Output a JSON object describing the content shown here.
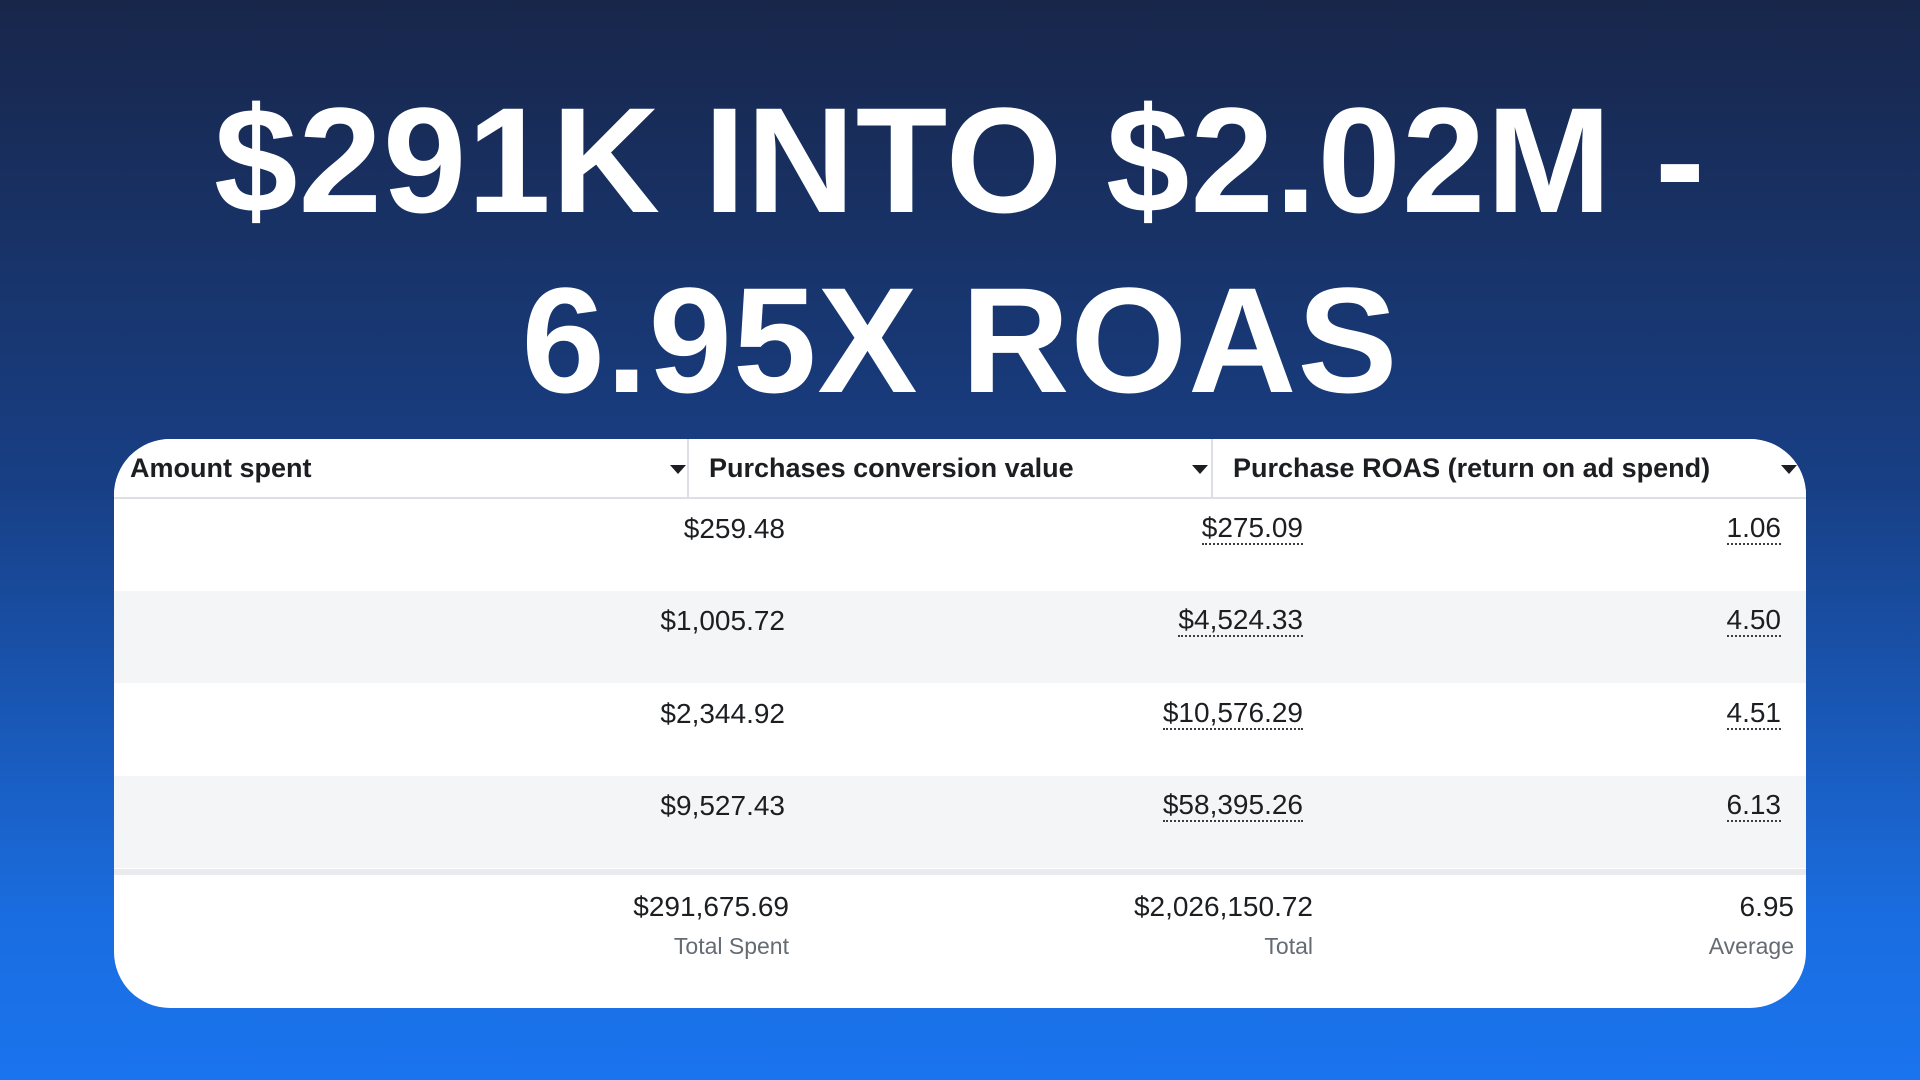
{
  "headline": {
    "line1": "$291K INTO $2.02M -",
    "line2": "6.95X ROAS"
  },
  "table": {
    "columns": [
      {
        "label": "Amount spent",
        "icon": "caret-down-icon"
      },
      {
        "label": "Purchases conversion value",
        "icon": "caret-down-icon"
      },
      {
        "label": "Purchase ROAS (return on ad spend)",
        "icon": "caret-down-icon"
      }
    ],
    "rows": [
      {
        "spent": "$259.48",
        "value": "$275.09",
        "roas": "1.06"
      },
      {
        "spent": "$1,005.72",
        "value": "$4,524.33",
        "roas": "4.50"
      },
      {
        "spent": "$2,344.92",
        "value": "$10,576.29",
        "roas": "4.51"
      },
      {
        "spent": "$9,527.43",
        "value": "$58,395.26",
        "roas": "6.13"
      }
    ],
    "totals": {
      "spent": "$291,675.69",
      "spent_caption": "Total Spent",
      "value": "$2,026,150.72",
      "value_caption": "Total",
      "roas": "6.95",
      "roas_caption": "Average"
    }
  },
  "colors": {
    "background_top": "#18264a",
    "background_bottom": "#1a74ee",
    "row_alt": "#f4f5f7",
    "text": "#1c1e21",
    "caption": "#656b73"
  }
}
